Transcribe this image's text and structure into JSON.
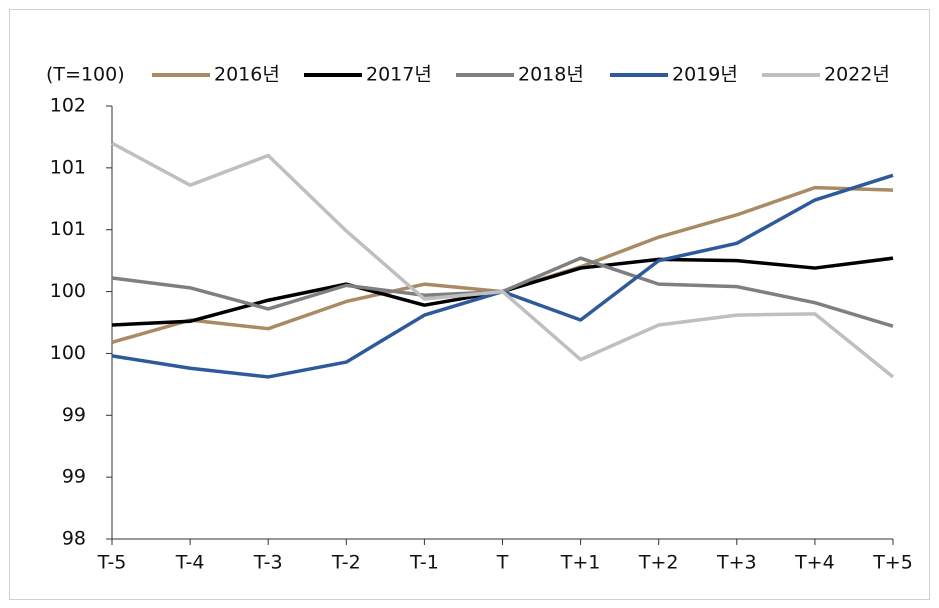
{
  "chart_data": {
    "type": "line",
    "unit_label": "(T=100)",
    "categories": [
      "T-5",
      "T-4",
      "T-3",
      "T-2",
      "T-1",
      "T",
      "T+1",
      "T+2",
      "T+3",
      "T+4",
      "T+5"
    ],
    "series": [
      {
        "name": "2016년",
        "color": "#a88a64",
        "values": [
          99.59,
          99.77,
          99.7,
          99.92,
          100.06,
          100,
          100.2,
          100.44,
          100.62,
          100.84,
          100.82
        ]
      },
      {
        "name": "2017년",
        "color": "#000000",
        "values": [
          99.73,
          99.76,
          99.93,
          100.06,
          99.89,
          100,
          100.19,
          100.26,
          100.25,
          100.19,
          100.27
        ]
      },
      {
        "name": "2018년",
        "color": "#7f7f7f",
        "values": [
          100.11,
          100.03,
          99.86,
          100.05,
          99.97,
          100,
          100.27,
          100.06,
          100.04,
          99.91,
          99.72
        ]
      },
      {
        "name": "2019년",
        "color": "#2e5a9c",
        "values": [
          99.48,
          99.38,
          99.31,
          99.43,
          99.81,
          100,
          99.77,
          100.25,
          100.39,
          100.74,
          100.94
        ]
      },
      {
        "name": "2022년",
        "color": "#bfbfbf",
        "values": [
          101.2,
          100.86,
          101.1,
          100.49,
          99.94,
          100,
          99.45,
          99.73,
          99.81,
          99.82,
          99.31
        ]
      }
    ],
    "ylim": [
      98,
      101.5
    ],
    "yticks": [
      98,
      {
        "value": 98.5,
        "label": "99"
      },
      99,
      {
        "value": 99.5,
        "label": "100"
      },
      100,
      {
        "value": 100.5,
        "label": "101"
      },
      101,
      {
        "value": 101.5,
        "label": "102"
      }
    ],
    "grid": false
  }
}
